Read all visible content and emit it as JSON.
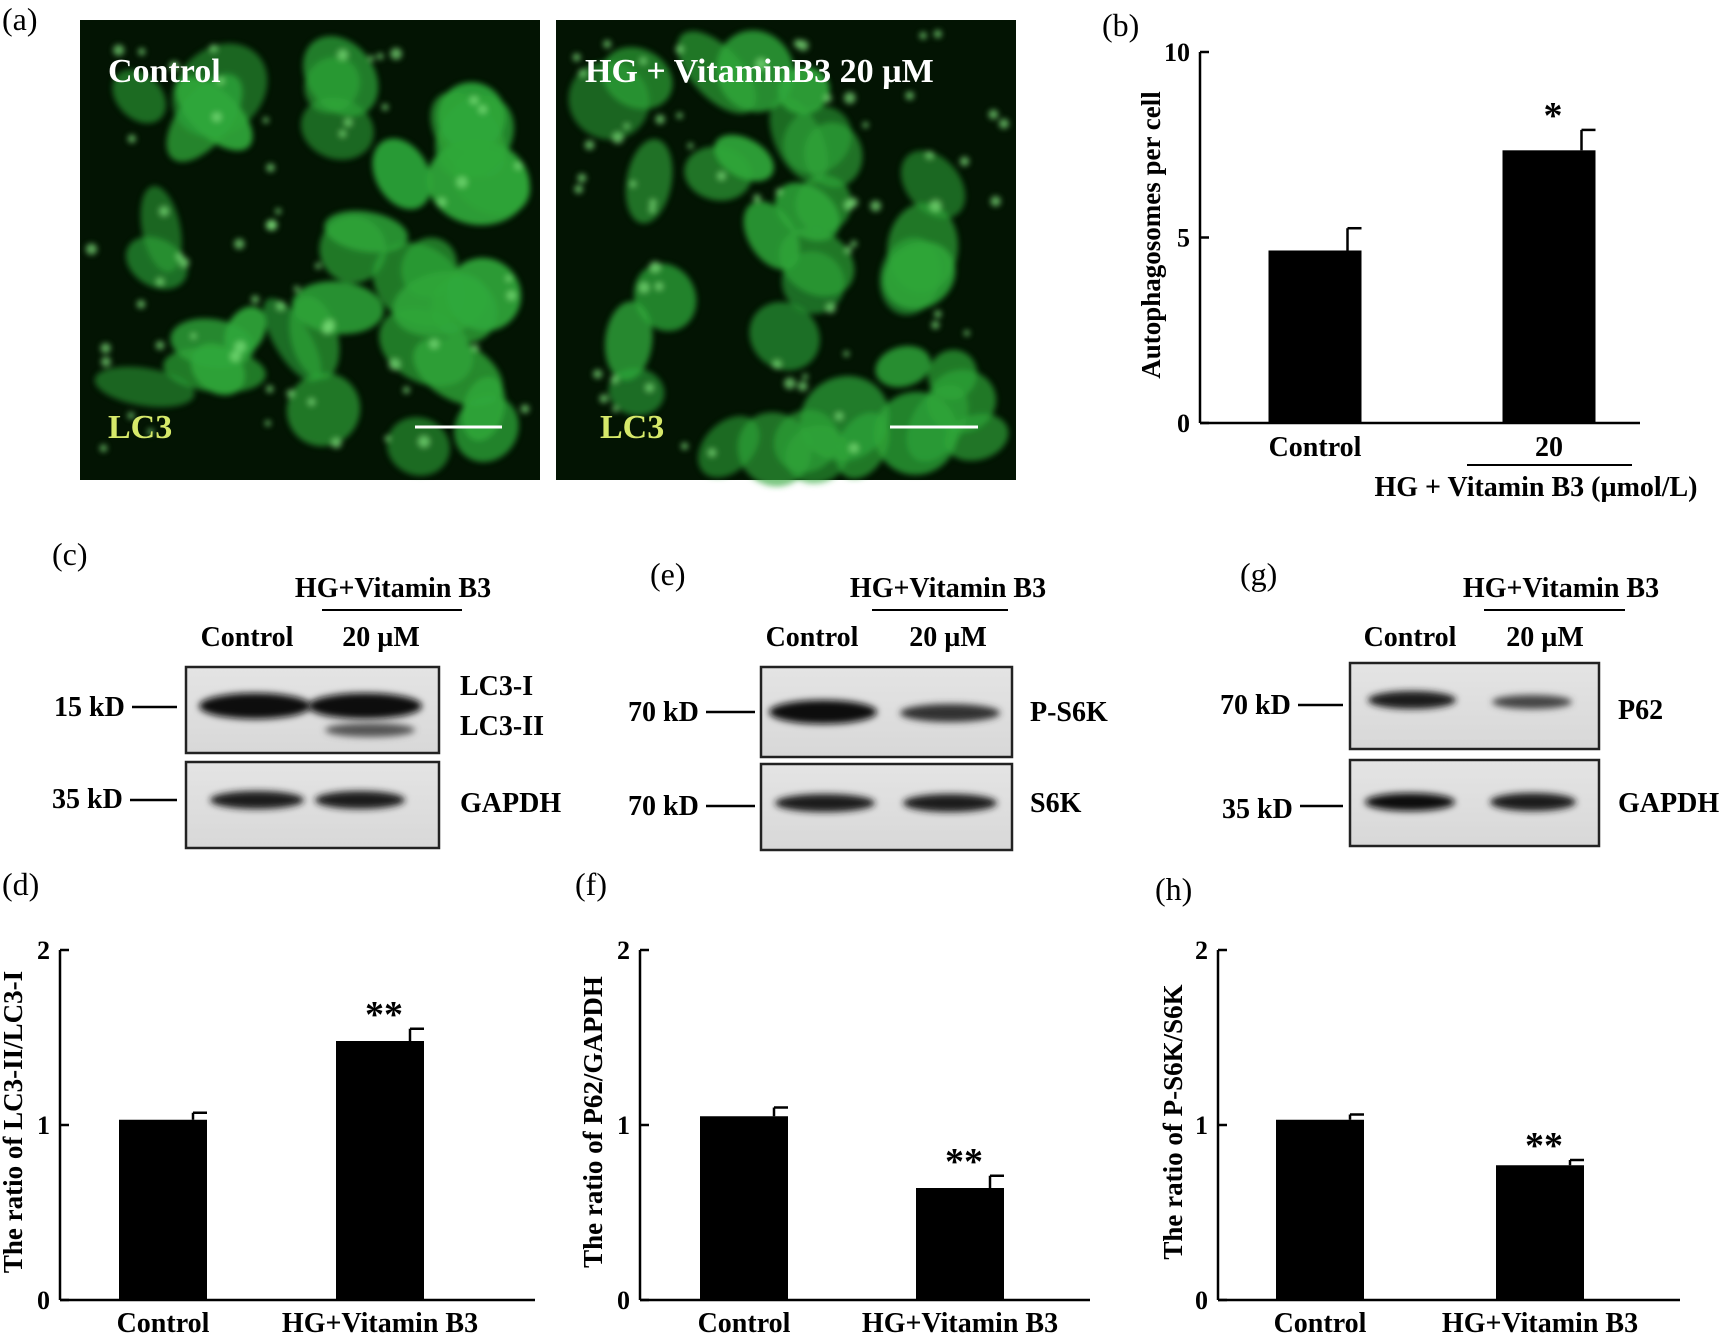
{
  "micrographs": {
    "panel": "(a)",
    "left_title": "Control",
    "right_title": "HG  + VitaminB3 20 µM",
    "stain": "LC3",
    "cell_color": "#2fa83a"
  },
  "blots": [
    {
      "panel": "(c)",
      "group": "HG+Vitamin B3",
      "lanes": [
        "Control",
        "20 µM"
      ],
      "rows": [
        {
          "marker": "15 kD",
          "bands": [
            "LC3-I",
            "LC3-II"
          ]
        },
        {
          "marker": "35 kD",
          "bands": [
            "GAPDH"
          ]
        }
      ]
    },
    {
      "panel": "(e)",
      "group": "HG+Vitamin B3",
      "lanes": [
        "Control",
        "20 µM"
      ],
      "rows": [
        {
          "marker": "70 kD",
          "bands": [
            "P-S6K"
          ]
        },
        {
          "marker": "70 kD",
          "bands": [
            "S6K"
          ]
        }
      ]
    },
    {
      "panel": "(g)",
      "group": "HG+Vitamin B3",
      "lanes": [
        "Control",
        "20 µM"
      ],
      "rows": [
        {
          "marker": "70 kD",
          "bands": [
            "P62"
          ]
        },
        {
          "marker": "35 kD",
          "bands": [
            "GAPDH"
          ]
        }
      ]
    }
  ],
  "chart_data": [
    {
      "panel": "(b)",
      "type": "bar",
      "categories": [
        "Control",
        "20"
      ],
      "group_label": "HG  + Vitamin B3 (µmol/L)",
      "values": [
        4.65,
        7.35
      ],
      "errors": [
        0.6,
        0.55
      ],
      "significance": [
        "",
        "*"
      ],
      "ylabel": "Autophagosomes per cell",
      "ylim": [
        0,
        10
      ],
      "yticks": [
        "0",
        "5",
        "10"
      ]
    },
    {
      "panel": "(d)",
      "type": "bar",
      "categories": [
        "Control",
        "HG+Vitamin B3"
      ],
      "values": [
        1.03,
        1.48
      ],
      "errors": [
        0.04,
        0.07
      ],
      "significance": [
        "",
        "**"
      ],
      "ylabel": "The ratio of LC3-II/LC3-I",
      "ylim": [
        0,
        2
      ],
      "yticks": [
        "0",
        "1",
        "2"
      ]
    },
    {
      "panel": "(f)",
      "type": "bar",
      "categories": [
        "Control",
        "HG+Vitamin B3"
      ],
      "values": [
        1.05,
        0.64
      ],
      "errors": [
        0.05,
        0.07
      ],
      "significance": [
        "",
        "**"
      ],
      "ylabel": "The ratio of P62/GAPDH",
      "ylim": [
        0,
        2
      ],
      "yticks": [
        "0",
        "1",
        "2"
      ]
    },
    {
      "panel": "(h)",
      "type": "bar",
      "categories": [
        "Control",
        "HG+Vitamin B3"
      ],
      "values": [
        1.03,
        0.77
      ],
      "errors": [
        0.03,
        0.03
      ],
      "significance": [
        "",
        "**"
      ],
      "ylabel": "The ratio of P-S6K/S6K",
      "ylim": [
        0,
        2
      ],
      "yticks": [
        "0",
        "1",
        "2"
      ]
    }
  ]
}
